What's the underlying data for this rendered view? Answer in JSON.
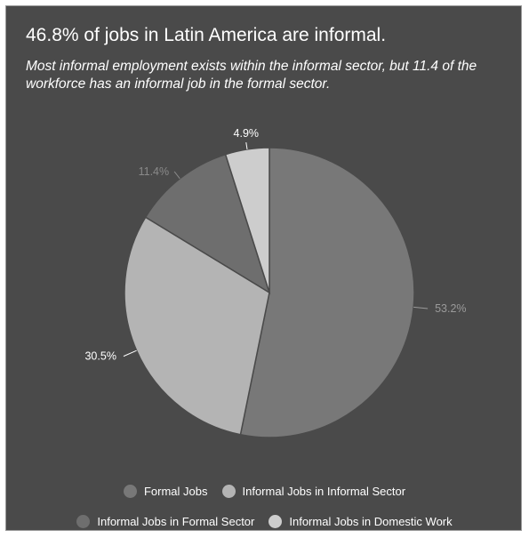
{
  "title": "46.8% of jobs in Latin America are informal.",
  "subtitle": "Most informal employment exists within the informal sector, but 11.4 of the workforce has an informal job in the formal sector.",
  "colors": {
    "background": "#4a4a4a",
    "formal": "#787878",
    "informal_informal_sector": "#b4b4b4",
    "informal_formal_sector": "#6e6e6e",
    "domestic": "#cdcdcd"
  },
  "chart_data": {
    "type": "pie",
    "categories": [
      "Formal Jobs",
      "Informal Jobs in Informal Sector",
      "Informal Jobs in Formal Sector",
      "Informal Jobs in Domestic Work"
    ],
    "values": [
      53.2,
      30.5,
      11.4,
      4.9
    ],
    "data_labels": [
      "53.2%",
      "30.5%",
      "11.4%",
      "4.9%"
    ],
    "legend_position": "bottom"
  },
  "legend": {
    "items": [
      {
        "label": "Formal Jobs",
        "color": "#787878"
      },
      {
        "label": "Informal Jobs in Informal Sector",
        "color": "#b4b4b4"
      },
      {
        "label": "Informal Jobs in Formal Sector",
        "color": "#6e6e6e"
      },
      {
        "label": "Informal Jobs in Domestic Work",
        "color": "#cdcdcd"
      }
    ]
  }
}
